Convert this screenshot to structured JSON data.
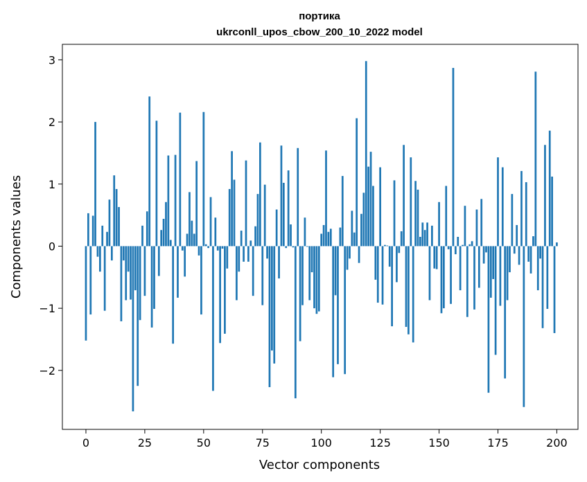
{
  "chart_data": {
    "type": "bar",
    "title_line1": "портика",
    "title_line2": "ukrconll_upos_cbow_200_10_2022 model",
    "xlabel": "Vector components",
    "ylabel": "Components values",
    "xlim": [
      -10,
      209
    ],
    "ylim": [
      -2.95,
      3.25
    ],
    "xticks": [
      0,
      25,
      50,
      75,
      100,
      125,
      150,
      175,
      200
    ],
    "yticks": [
      -2,
      -1,
      0,
      1,
      2,
      3
    ],
    "ytick_labels": [
      "−2",
      "−1",
      "0",
      "1",
      "2",
      "3"
    ],
    "grid": false,
    "bar_color": "#1f77b4",
    "values": [
      -1.52,
      0.53,
      -1.1,
      0.49,
      2.0,
      -0.17,
      -0.41,
      0.33,
      -1.04,
      0.23,
      0.75,
      -0.23,
      1.14,
      0.92,
      0.63,
      -1.21,
      -0.23,
      -0.87,
      -0.41,
      -0.86,
      -2.66,
      -0.71,
      -2.25,
      -1.19,
      0.33,
      -0.8,
      0.56,
      2.41,
      -1.31,
      -1.01,
      2.02,
      -0.48,
      0.26,
      0.44,
      0.71,
      1.46,
      0.1,
      -1.57,
      1.47,
      -0.83,
      2.15,
      -0.07,
      -0.49,
      0.2,
      0.87,
      0.41,
      0.2,
      1.37,
      -0.15,
      -1.1,
      2.16,
      0.03,
      -0.03,
      0.79,
      -2.33,
      0.46,
      -0.07,
      -1.56,
      -0.04,
      -1.41,
      -0.36,
      0.92,
      1.53,
      1.07,
      -0.87,
      -0.41,
      0.25,
      -0.25,
      1.38,
      -0.25,
      0.09,
      -0.8,
      0.32,
      0.84,
      1.67,
      -0.95,
      0.99,
      -0.2,
      -2.27,
      -1.68,
      -1.89,
      0.59,
      -0.52,
      1.62,
      1.02,
      -0.03,
      1.22,
      0.35,
      -0.02,
      -2.45,
      1.58,
      -1.53,
      -0.95,
      0.46,
      -0.01,
      -0.87,
      -0.42,
      -1.0,
      -1.09,
      -1.05,
      0.2,
      0.34,
      1.54,
      0.23,
      0.28,
      -2.11,
      -0.79,
      -1.9,
      0.3,
      1.13,
      -2.06,
      -0.38,
      -0.2,
      0.57,
      0.22,
      2.06,
      -0.27,
      0.52,
      0.86,
      2.98,
      1.28,
      1.52,
      0.97,
      -0.54,
      -0.91,
      1.27,
      -0.94,
      0.02,
      0.01,
      -0.33,
      -1.29,
      1.06,
      -0.58,
      -0.11,
      0.24,
      1.63,
      -1.3,
      -1.42,
      1.43,
      -1.55,
      1.05,
      0.91,
      0.15,
      0.38,
      0.26,
      0.38,
      -0.87,
      0.33,
      -0.36,
      -0.37,
      0.71,
      -1.08,
      -1.0,
      0.97,
      -0.05,
      -0.93,
      2.87,
      -0.13,
      0.15,
      -0.71,
      0.02,
      0.65,
      -1.14,
      0.03,
      0.08,
      -1.02,
      0.59,
      -0.67,
      0.76,
      -0.28,
      -0.1,
      -2.36,
      -0.83,
      -0.53,
      -1.75,
      1.43,
      -0.96,
      1.27,
      -2.13,
      -0.87,
      -0.42,
      0.84,
      -0.12,
      0.34,
      -0.3,
      1.21,
      -2.59,
      1.03,
      -0.25,
      -0.44,
      0.16,
      2.81,
      -0.71,
      -0.2,
      -1.32,
      1.63,
      -1.01,
      1.86,
      1.12,
      -1.4,
      0.06
    ]
  }
}
